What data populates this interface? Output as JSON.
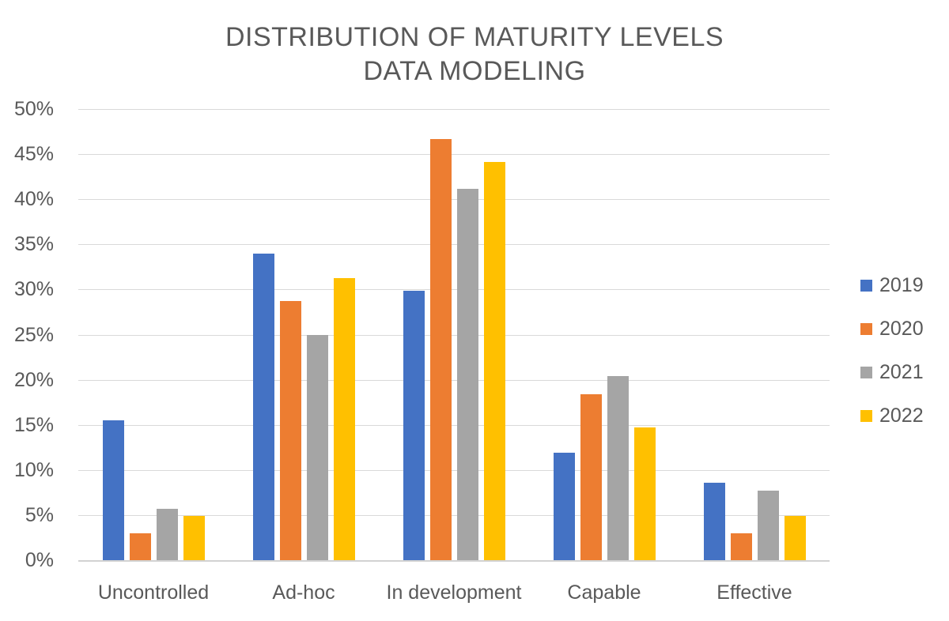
{
  "title": {
    "line1": "DISTRIBUTION OF MATURITY LEVELS",
    "line2": "DATA MODELING"
  },
  "chart_data": {
    "type": "bar",
    "title": "DISTRIBUTION OF MATURITY LEVELS DATA MODELING",
    "categories": [
      "Uncontrolled",
      "Ad-hoc",
      "In development",
      "Capable",
      "Effective"
    ],
    "series": [
      {
        "name": "2019",
        "color": "#4472C4",
        "values": [
          15.5,
          34.0,
          29.9,
          11.9,
          8.6
        ]
      },
      {
        "name": "2020",
        "color": "#ED7D31",
        "values": [
          3.0,
          28.7,
          46.7,
          18.4,
          3.0
        ]
      },
      {
        "name": "2021",
        "color": "#A5A5A5",
        "values": [
          5.7,
          25.0,
          41.2,
          20.4,
          7.7
        ]
      },
      {
        "name": "2022",
        "color": "#FFC000",
        "values": [
          4.9,
          31.3,
          44.1,
          14.7,
          4.9
        ]
      }
    ],
    "xlabel": "",
    "ylabel": "",
    "ylim": [
      0,
      50
    ],
    "y_tick_step": 5,
    "y_tick_labels": [
      "0%",
      "5%",
      "10%",
      "15%",
      "20%",
      "25%",
      "30%",
      "35%",
      "40%",
      "45%",
      "50%"
    ],
    "grid": true,
    "legend_position": "right",
    "text_color": "#595959",
    "gridline_color": "#D9D9D9"
  }
}
